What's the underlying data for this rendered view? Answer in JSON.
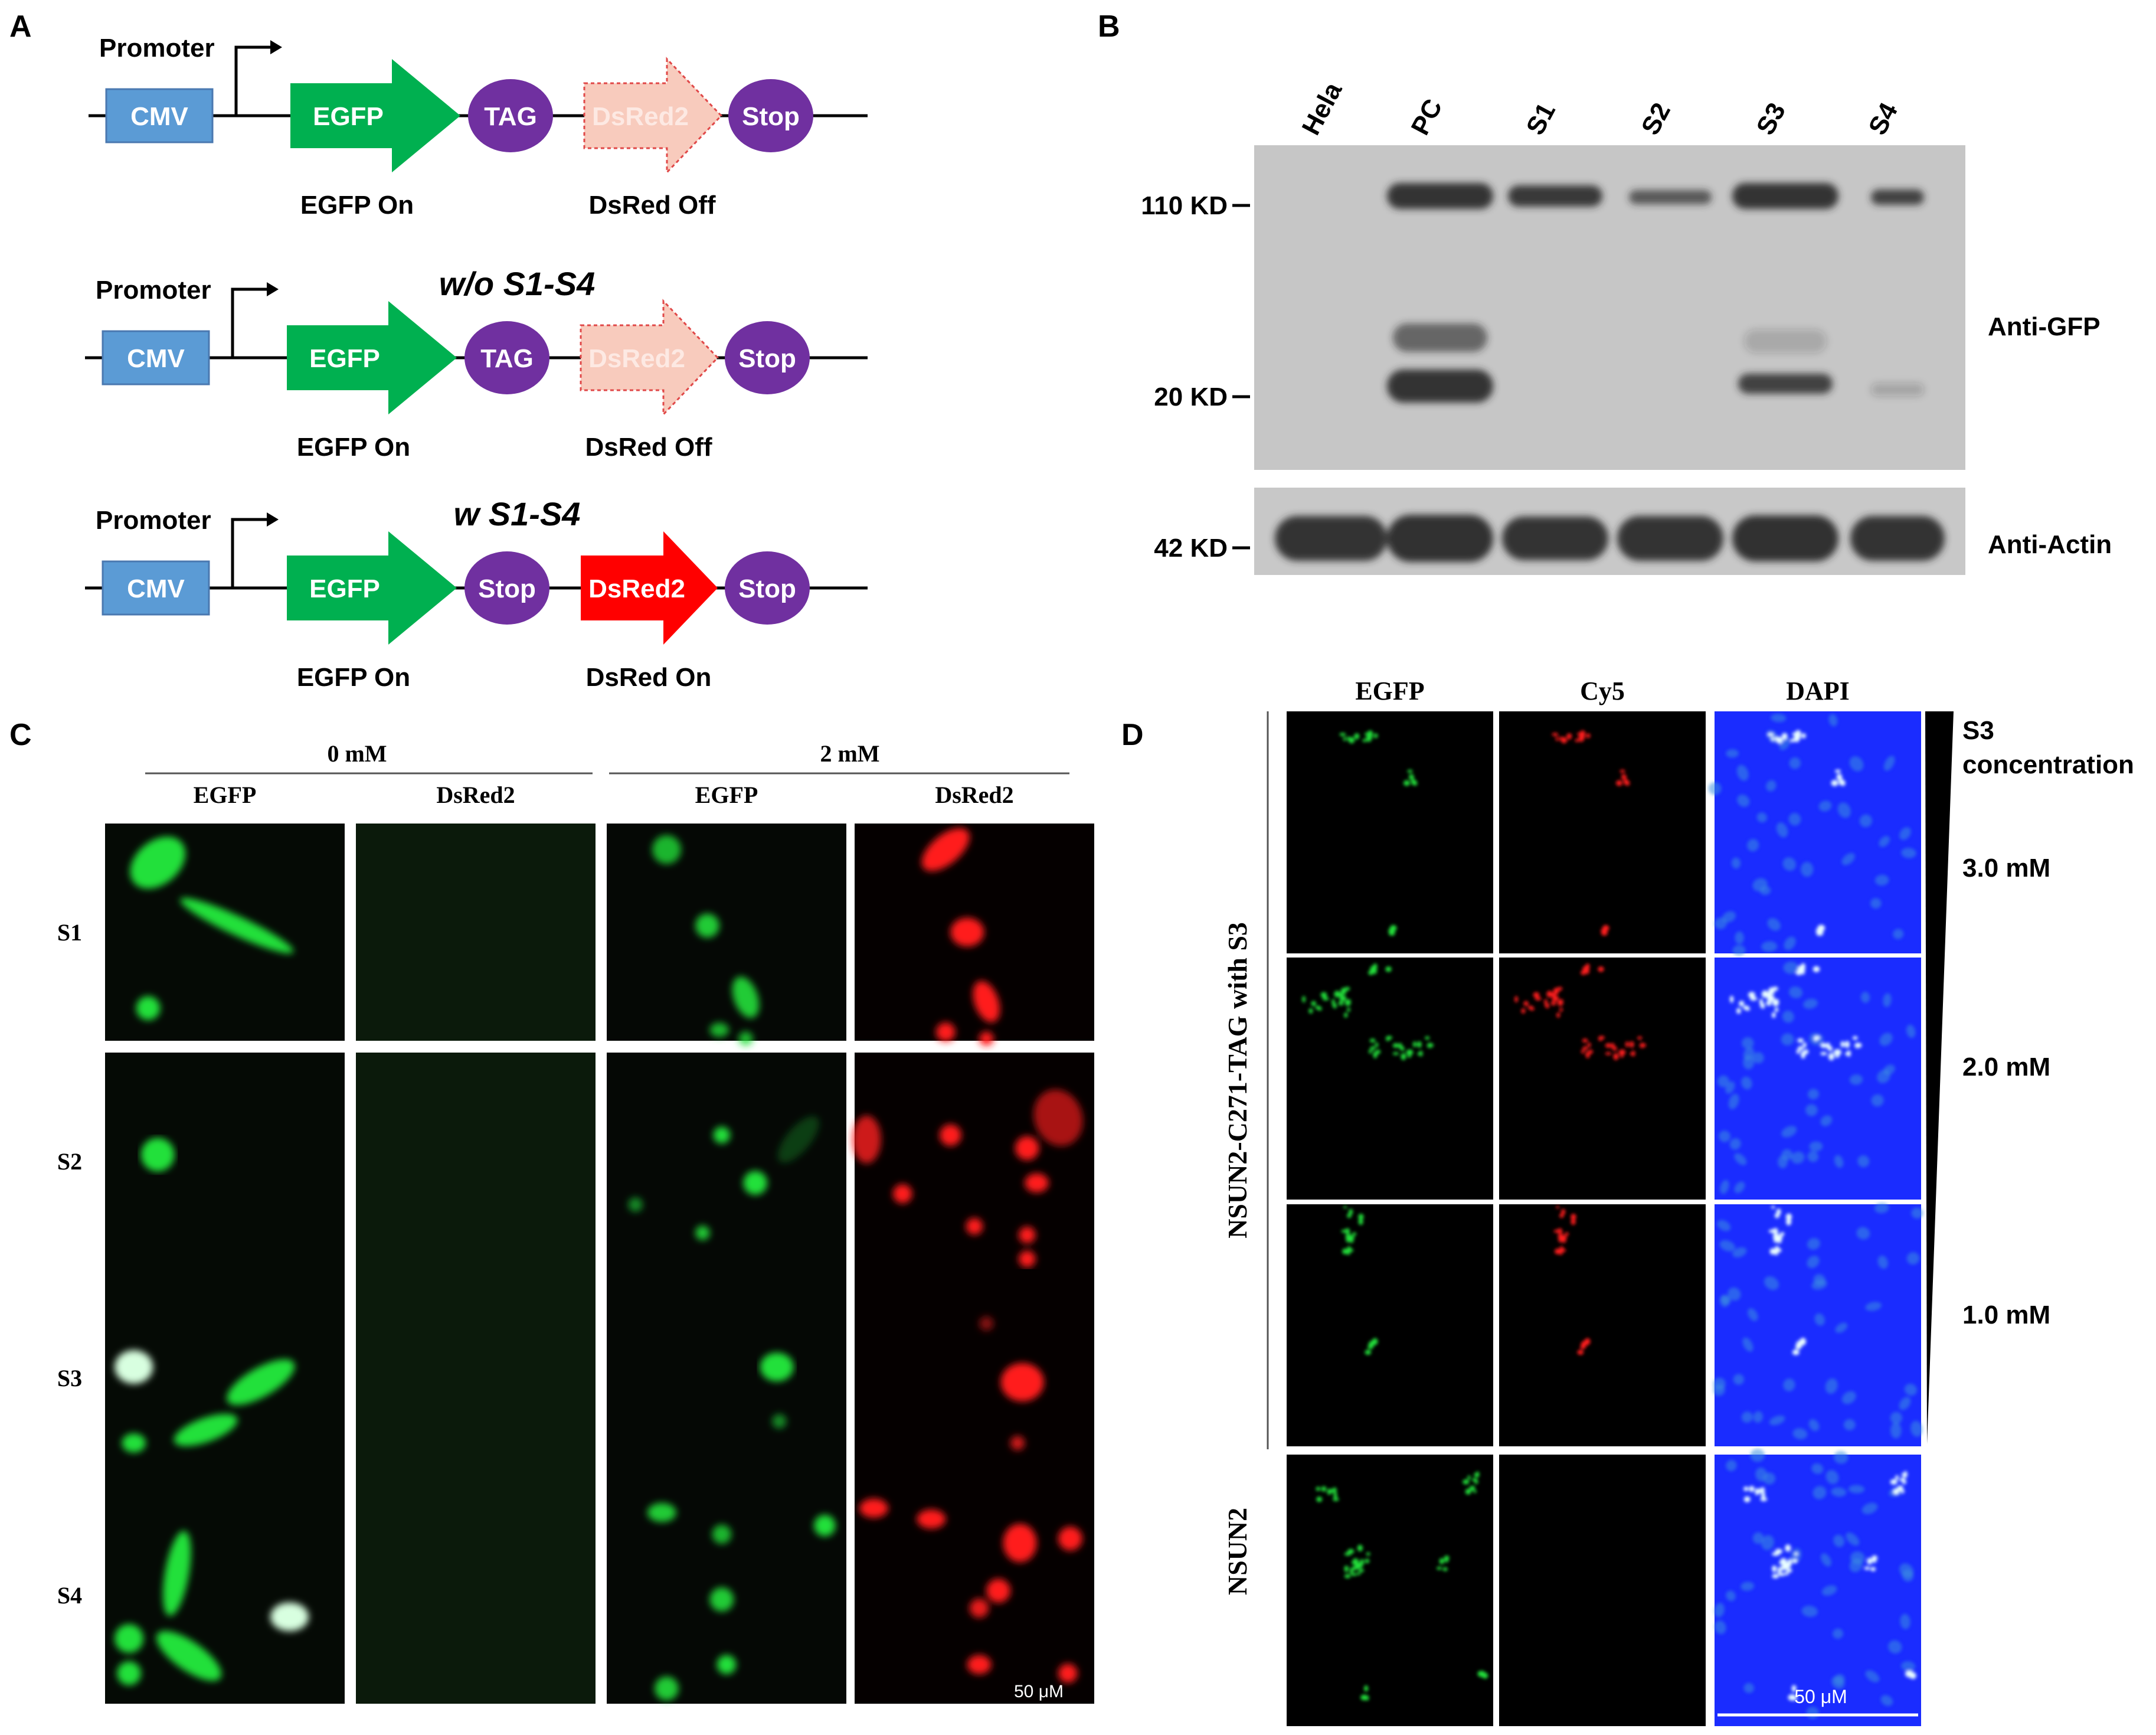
{
  "panelA": {
    "label": "A",
    "rows": [
      {
        "condition": "",
        "promoter": "Promoter",
        "cmv": "CMV",
        "egfp": "EGFP",
        "codon": "TAG",
        "dsred": "DsRed2",
        "stop": "Stop",
        "egfp_state": "EGFP On",
        "dsred_state": "DsRed Off",
        "dsred_active": false
      },
      {
        "condition": "w/o S1-S4",
        "promoter": "Promoter",
        "cmv": "CMV",
        "egfp": "EGFP",
        "codon": "TAG",
        "dsred": "DsRed2",
        "stop": "Stop",
        "egfp_state": "EGFP On",
        "dsred_state": "DsRed Off",
        "dsred_active": false
      },
      {
        "condition": "w S1-S4",
        "promoter": "Promoter",
        "cmv": "CMV",
        "egfp": "EGFP",
        "codon": "Stop",
        "dsred": "DsRed2",
        "stop": "Stop",
        "egfp_state": "EGFP On",
        "dsred_state": "DsRed On",
        "dsred_active": true
      }
    ]
  },
  "panelB": {
    "label": "B",
    "lanes": [
      "Hela",
      "PC",
      "S1",
      "S2",
      "S3",
      "S4"
    ],
    "markers": [
      "110 KD",
      "20 KD",
      "42 KD"
    ],
    "antibody_top": "Anti-GFP",
    "antibody_bottom": "Anti-Actin"
  },
  "panelC": {
    "label": "C",
    "groups": [
      "0 mM",
      "2 mM"
    ],
    "columns": [
      "EGFP",
      "DsRed2",
      "EGFP",
      "DsRed2"
    ],
    "rows": [
      "S1",
      "S2",
      "S3",
      "S4"
    ],
    "scale_bar": "50 μM"
  },
  "panelD": {
    "label": "D",
    "columns": [
      "EGFP",
      "Cy5",
      "DAPI"
    ],
    "group_label": "NSUN2-C271-TAG with S3",
    "control_label": "NSUN2",
    "gradient_label_1": "S3",
    "gradient_label_2": "concentration",
    "concentrations": [
      "3.0 mM",
      "2.0 mM",
      "1.0 mM"
    ],
    "scale_bar": "50 μM"
  },
  "colors": {
    "cmv": "#5b9bd5",
    "egfp": "#00b050",
    "codon": "#7030a0",
    "dsred_off": "#f8cbbd",
    "dsred_on": "#ff0000",
    "blot": "#c8c8c8",
    "band": "#2a2a2a",
    "micro_green": "#22e03a",
    "micro_red": "#ff1e1e",
    "dapi": "#1a2cff"
  }
}
